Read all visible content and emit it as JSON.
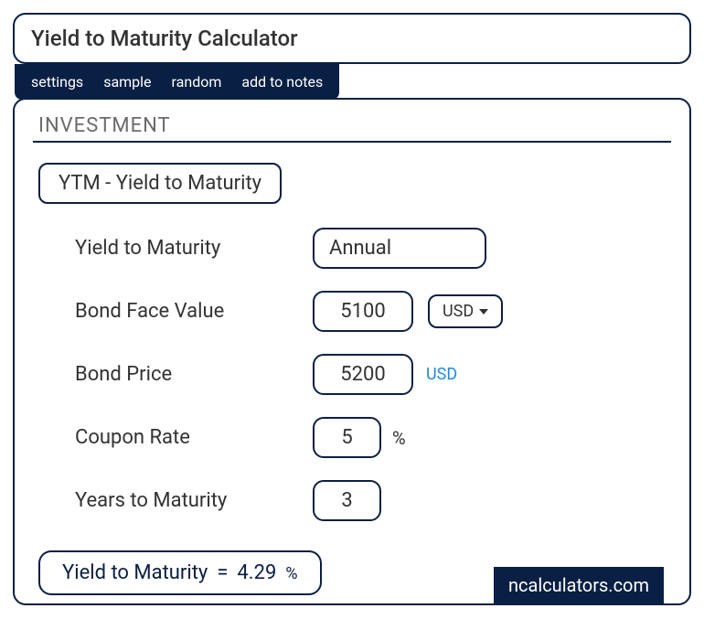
{
  "colors": {
    "navy": "#0a1f44",
    "white": "#ffffff",
    "grey": "#6b6b6b",
    "link_blue": "#1e88e5"
  },
  "title": "Yield to Maturity Calculator",
  "tabs": [
    {
      "label": "settings"
    },
    {
      "label": "sample"
    },
    {
      "label": "random"
    },
    {
      "label": "add to notes"
    }
  ],
  "section": {
    "heading": "INVESTMENT",
    "subheading": "YTM - Yield to Maturity"
  },
  "fields": {
    "ytm_period": {
      "label": "Yield to Maturity",
      "value": "Annual"
    },
    "face_value": {
      "label": "Bond Face Value",
      "value": "5100",
      "currency": "USD"
    },
    "bond_price": {
      "label": "Bond Price",
      "value": "5200",
      "suffix": "USD"
    },
    "coupon_rate": {
      "label": "Coupon Rate",
      "value": "5",
      "suffix": "%"
    },
    "years": {
      "label": "Years to Maturity",
      "value": "3"
    }
  },
  "result": {
    "label": "Yield to Maturity",
    "equals": " = ",
    "value": "4.29",
    "unit": "%"
  },
  "watermark": "ncalculators.com"
}
